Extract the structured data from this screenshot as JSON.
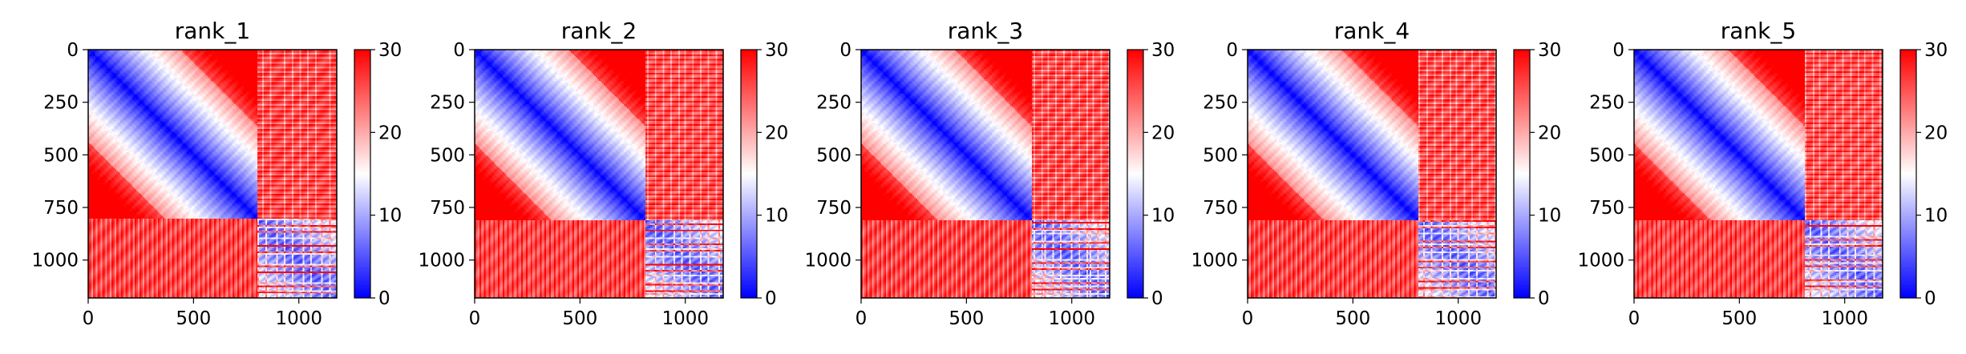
{
  "chart_data": [
    {
      "type": "heatmap",
      "title": "rank_1",
      "xlabel": "",
      "ylabel": "",
      "xlim": [
        0,
        1180
      ],
      "ylim": [
        1180,
        0
      ],
      "x_ticks": [
        "0",
        "500",
        "1000"
      ],
      "x_tick_values": [
        0,
        500,
        1000
      ],
      "y_ticks": [
        "0",
        "250",
        "500",
        "750",
        "1000"
      ],
      "y_tick_values": [
        0,
        250,
        500,
        750,
        1000
      ],
      "colorbar": {
        "ticks": [
          "0",
          "10",
          "20",
          "30"
        ],
        "tick_values": [
          0,
          10,
          20,
          30
        ],
        "vmin": 0,
        "vmax": 30,
        "colormap": "bwr"
      },
      "block_boundary": 805,
      "matrix_size": 1180
    },
    {
      "type": "heatmap",
      "title": "rank_2",
      "xlabel": "",
      "ylabel": "",
      "xlim": [
        0,
        1180
      ],
      "ylim": [
        1180,
        0
      ],
      "x_ticks": [
        "0",
        "500",
        "1000"
      ],
      "x_tick_values": [
        0,
        500,
        1000
      ],
      "y_ticks": [
        "0",
        "250",
        "500",
        "750",
        "1000"
      ],
      "y_tick_values": [
        0,
        250,
        500,
        750,
        1000
      ],
      "colorbar": {
        "ticks": [
          "0",
          "10",
          "20",
          "30"
        ],
        "tick_values": [
          0,
          10,
          20,
          30
        ],
        "vmin": 0,
        "vmax": 30,
        "colormap": "bwr"
      },
      "block_boundary": 810,
      "matrix_size": 1180
    },
    {
      "type": "heatmap",
      "title": "rank_3",
      "xlabel": "",
      "ylabel": "",
      "xlim": [
        0,
        1180
      ],
      "ylim": [
        1180,
        0
      ],
      "x_ticks": [
        "0",
        "500",
        "1000"
      ],
      "x_tick_values": [
        0,
        500,
        1000
      ],
      "y_ticks": [
        "0",
        "250",
        "500",
        "750",
        "1000"
      ],
      "y_tick_values": [
        0,
        250,
        500,
        750,
        1000
      ],
      "colorbar": {
        "ticks": [
          "0",
          "10",
          "20",
          "30"
        ],
        "tick_values": [
          0,
          10,
          20,
          30
        ],
        "vmin": 0,
        "vmax": 30,
        "colormap": "bwr"
      },
      "block_boundary": 810,
      "matrix_size": 1180
    },
    {
      "type": "heatmap",
      "title": "rank_4",
      "xlabel": "",
      "ylabel": "",
      "xlim": [
        0,
        1180
      ],
      "ylim": [
        1180,
        0
      ],
      "x_ticks": [
        "0",
        "500",
        "1000"
      ],
      "x_tick_values": [
        0,
        500,
        1000
      ],
      "y_ticks": [
        "0",
        "250",
        "500",
        "750",
        "1000"
      ],
      "y_tick_values": [
        0,
        250,
        500,
        750,
        1000
      ],
      "colorbar": {
        "ticks": [
          "0",
          "10",
          "20",
          "30"
        ],
        "tick_values": [
          0,
          10,
          20,
          30
        ],
        "vmin": 0,
        "vmax": 30,
        "colormap": "bwr"
      },
      "block_boundary": 810,
      "matrix_size": 1180
    },
    {
      "type": "heatmap",
      "title": "rank_5",
      "xlabel": "",
      "ylabel": "",
      "xlim": [
        0,
        1180
      ],
      "ylim": [
        1180,
        0
      ],
      "x_ticks": [
        "0",
        "500",
        "1000"
      ],
      "x_tick_values": [
        0,
        500,
        1000
      ],
      "y_ticks": [
        "0",
        "250",
        "500",
        "750",
        "1000"
      ],
      "y_tick_values": [
        0,
        250,
        500,
        750,
        1000
      ],
      "colorbar": {
        "ticks": [
          "0",
          "10",
          "20",
          "30"
        ],
        "tick_values": [
          0,
          10,
          20,
          30
        ],
        "vmin": 0,
        "vmax": 30,
        "colormap": "bwr"
      },
      "block_boundary": 810,
      "matrix_size": 1180
    }
  ],
  "colors": {
    "low": "#0000ff",
    "mid": "#ffffff",
    "high": "#ff0000"
  }
}
